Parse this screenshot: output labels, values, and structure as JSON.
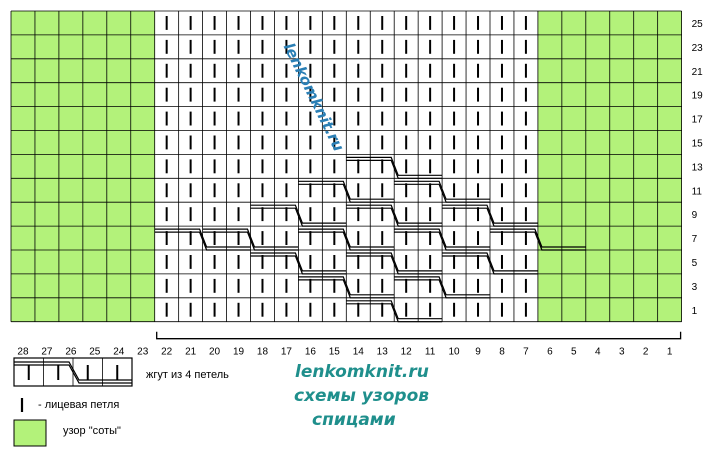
{
  "diagram": {
    "columns": 28,
    "rows": 25,
    "column_numbers": [
      "28",
      "27",
      "26",
      "25",
      "24",
      "23",
      "22",
      "21",
      "20",
      "19",
      "18",
      "17",
      "16",
      "15",
      "14",
      "13",
      "12",
      "11",
      "10",
      "9",
      "8",
      "7",
      "6",
      "5",
      "4",
      "3",
      "2",
      "1"
    ],
    "row_numbers": [
      "25",
      "23",
      "21",
      "19",
      "17",
      "15",
      "13",
      "11",
      "9",
      "7",
      "5",
      "3",
      "1"
    ],
    "honeycomb_columns_left": [
      "28",
      "27",
      "26",
      "25",
      "24",
      "23"
    ],
    "honeycomb_columns_right": [
      "6",
      "5",
      "4",
      "3",
      "2",
      "1"
    ],
    "cable_repeat_bracket": [
      "22",
      "1"
    ]
  },
  "colors": {
    "honeycomb_fill": "#b3f27a",
    "grid_line": "#000000",
    "brand_text": "#1f8f8c",
    "watermark_text": "#2a7fb5"
  },
  "watermark": "lenkomknit.ru",
  "legend": {
    "cable_label": "жгут из 4 петель",
    "knit_label": "- лицевая петля",
    "honeycomb_label": "узор \"соты\""
  },
  "brand": {
    "site": "lenkomknit.ru",
    "line2": "схемы узоров",
    "line3": "спицами"
  }
}
